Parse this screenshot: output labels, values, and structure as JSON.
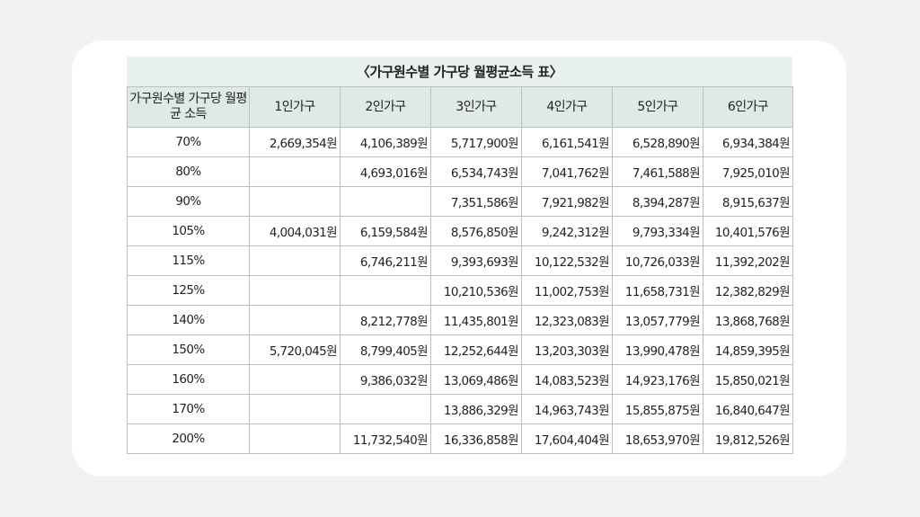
{
  "title": "〈가구원수별 가구당 월평균소득 표〉",
  "headers": [
    "가구원수별 가구당 월평균 소득",
    "1인가구",
    "2인가구",
    "3인가구",
    "4인가구",
    "5인가구",
    "6인가구"
  ],
  "rows": [
    [
      "70%",
      "2,669,354원",
      "4,106,389원",
      "5,717,900원",
      "6,161,541원",
      "6,528,890원",
      "6,934,384원"
    ],
    [
      "80%",
      "",
      "4,693,016원",
      "6,534,743원",
      "7,041,762원",
      "7,461,588원",
      "7,925,010원"
    ],
    [
      "90%",
      "",
      "",
      "7,351,586원",
      "7,921,982원",
      "8,394,287원",
      "8,915,637원"
    ],
    [
      "105%",
      "4,004,031원",
      "6,159,584원",
      "8,576,850원",
      "9,242,312원",
      "9,793,334원",
      "10,401,576원"
    ],
    [
      "115%",
      "",
      "6,746,211원",
      "9,393,693원",
      "10,122,532원",
      "10,726,033원",
      "11,392,202원"
    ],
    [
      "125%",
      "",
      "",
      "10,210,536원",
      "11,002,753원",
      "11,658,731원",
      "12,382,829원"
    ],
    [
      "140%",
      "",
      "8,212,778원",
      "11,435,801원",
      "12,323,083원",
      "13,057,779원",
      "13,868,768원"
    ],
    [
      "150%",
      "5,720,045원",
      "8,799,405원",
      "12,252,644원",
      "13,203,303원",
      "13,990,478원",
      "14,859,395원"
    ],
    [
      "160%",
      "",
      "9,386,032원",
      "13,069,486원",
      "14,083,523원",
      "14,923,176원",
      "15,850,021원"
    ],
    [
      "170%",
      "",
      "",
      "13,886,329원",
      "14,963,743원",
      "15,855,875원",
      "16,840,647원"
    ],
    [
      "200%",
      "",
      "11,732,540원",
      "16,336,858원",
      "17,604,404원",
      "18,653,970원",
      "19,812,526원"
    ]
  ]
}
